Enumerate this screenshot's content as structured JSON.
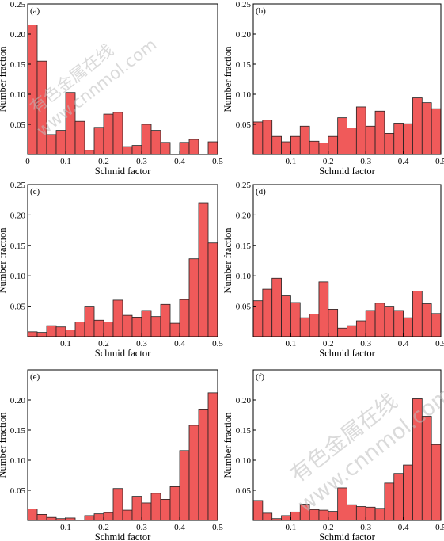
{
  "watermark": {
    "line1": "有色金属在线",
    "line2": "www.cnnmol.com"
  },
  "chart_data": [
    {
      "panel": "(a)",
      "type": "bar",
      "xlabel": "Schmid factor",
      "ylabel": "Number fraction",
      "xlim": [
        0,
        0.5
      ],
      "ylim": [
        0,
        0.25
      ],
      "xticks": [
        "0",
        "0.1",
        "0.2",
        "0.3",
        "0.4",
        "0.5"
      ],
      "yticks": [
        "0.05",
        "0.10",
        "0.15",
        "0.20",
        "0.25"
      ],
      "bin_width": 0.025,
      "x": [
        0.0125,
        0.0375,
        0.0625,
        0.0875,
        0.1125,
        0.1375,
        0.1625,
        0.1875,
        0.2125,
        0.2375,
        0.2625,
        0.2875,
        0.3125,
        0.3375,
        0.3625,
        0.3875,
        0.4125,
        0.4375,
        0.4625,
        0.4875
      ],
      "values": [
        0.215,
        0.155,
        0.033,
        0.04,
        0.103,
        0.055,
        0.007,
        0.045,
        0.067,
        0.07,
        0.013,
        0.015,
        0.05,
        0.04,
        0.02,
        0,
        0.02,
        0.025,
        0,
        0.021
      ]
    },
    {
      "panel": "(b)",
      "type": "bar",
      "xlabel": "Schmid factor",
      "ylabel": "Number fraction",
      "xlim": [
        0,
        0.5
      ],
      "ylim": [
        0,
        0.25
      ],
      "xticks": [
        "0.1",
        "0.2",
        "0.3",
        "0.4",
        "0.5"
      ],
      "yticks": [
        "0.05",
        "0.10",
        "0.15",
        "0.20",
        "0.25"
      ],
      "bin_width": 0.025,
      "x": [
        0.0125,
        0.0375,
        0.0625,
        0.0875,
        0.1125,
        0.1375,
        0.1625,
        0.1875,
        0.2125,
        0.2375,
        0.2625,
        0.2875,
        0.3125,
        0.3375,
        0.3625,
        0.3875,
        0.4125,
        0.4375,
        0.4625,
        0.4875
      ],
      "values": [
        0.054,
        0.057,
        0.03,
        0.021,
        0.03,
        0.047,
        0.022,
        0.019,
        0.03,
        0.061,
        0.044,
        0.079,
        0.047,
        0.072,
        0.035,
        0.052,
        0.051,
        0.094,
        0.086,
        0.076
      ]
    },
    {
      "panel": "(c)",
      "type": "bar",
      "xlabel": "Schmid factor",
      "ylabel": "Number fraction",
      "xlim": [
        0,
        0.5
      ],
      "ylim": [
        0,
        0.25
      ],
      "xticks": [
        "0.1",
        "0.2",
        "0.3",
        "0.4",
        "0.5"
      ],
      "yticks": [
        "0.05",
        "0.10",
        "0.15",
        "0.20",
        "0.25"
      ],
      "bin_width": 0.025,
      "x": [
        0.0125,
        0.0375,
        0.0625,
        0.0875,
        0.1125,
        0.1375,
        0.1625,
        0.1875,
        0.2125,
        0.2375,
        0.2625,
        0.2875,
        0.3125,
        0.3375,
        0.3625,
        0.3875,
        0.4125,
        0.4375,
        0.4625,
        0.4875
      ],
      "values": [
        0.008,
        0.007,
        0.018,
        0.016,
        0.011,
        0.024,
        0.05,
        0.027,
        0.024,
        0.06,
        0.035,
        0.032,
        0.043,
        0.033,
        0.053,
        0.022,
        0.061,
        0.128,
        0.22,
        0.154
      ]
    },
    {
      "panel": "(d)",
      "type": "bar",
      "xlabel": "Schmid factor",
      "ylabel": "Number fraction",
      "xlim": [
        0,
        0.5
      ],
      "ylim": [
        0,
        0.25
      ],
      "xticks": [
        "0.1",
        "0.2",
        "0.3",
        "0.4",
        "0.5"
      ],
      "yticks": [
        "0.05",
        "0.10",
        "0.15",
        "0.20",
        "0.25"
      ],
      "bin_width": 0.025,
      "x": [
        0.0125,
        0.0375,
        0.0625,
        0.0875,
        0.1125,
        0.1375,
        0.1625,
        0.1875,
        0.2125,
        0.2375,
        0.2625,
        0.2875,
        0.3125,
        0.3375,
        0.3625,
        0.3875,
        0.4125,
        0.4375,
        0.4625,
        0.4875
      ],
      "values": [
        0.059,
        0.078,
        0.096,
        0.067,
        0.056,
        0.031,
        0.037,
        0.09,
        0.045,
        0.014,
        0.018,
        0.026,
        0.043,
        0.055,
        0.05,
        0.043,
        0.031,
        0.075,
        0.054,
        0.038
      ]
    },
    {
      "panel": "(e)",
      "type": "bar",
      "xlabel": "Schmid factor",
      "ylabel": "Number fraction",
      "xlim": [
        0,
        0.5
      ],
      "ylim": [
        0,
        0.25
      ],
      "xticks": [
        "0.1",
        "0.2",
        "0.3",
        "0.4",
        "0.5"
      ],
      "yticks": [
        "0.05",
        "0.10",
        "0.15",
        "0.20"
      ],
      "bin_width": 0.025,
      "x": [
        0.0125,
        0.0375,
        0.0625,
        0.0875,
        0.1125,
        0.1375,
        0.1625,
        0.1875,
        0.2125,
        0.2375,
        0.2625,
        0.2875,
        0.3125,
        0.3375,
        0.3625,
        0.3875,
        0.4125,
        0.4375,
        0.4625,
        0.4875
      ],
      "values": [
        0.019,
        0.01,
        0.005,
        0.003,
        0.004,
        0,
        0.008,
        0.011,
        0.013,
        0.053,
        0.017,
        0.04,
        0.029,
        0.045,
        0.035,
        0.056,
        0.116,
        0.158,
        0.185,
        0.212
      ]
    },
    {
      "panel": "(f)",
      "type": "bar",
      "xlabel": "Schmid factor",
      "ylabel": "Number fraction",
      "xlim": [
        0,
        0.5
      ],
      "ylim": [
        0,
        0.25
      ],
      "xticks": [
        "0.1",
        "0.2",
        "0.3",
        "0.4",
        "0.5"
      ],
      "yticks": [
        "0.05",
        "0.10",
        "0.15",
        "0.20"
      ],
      "bin_width": 0.025,
      "x": [
        0.0125,
        0.0375,
        0.0625,
        0.0875,
        0.1125,
        0.1375,
        0.1625,
        0.1875,
        0.2125,
        0.2375,
        0.2625,
        0.2875,
        0.3125,
        0.3375,
        0.3625,
        0.3875,
        0.4125,
        0.4375,
        0.4625,
        0.4875
      ],
      "values": [
        0.033,
        0.012,
        0.003,
        0.008,
        0.014,
        0.027,
        0.018,
        0.017,
        0.015,
        0.054,
        0.026,
        0.023,
        0.022,
        0.02,
        0.062,
        0.078,
        0.092,
        0.202,
        0.173,
        0.126
      ]
    }
  ]
}
